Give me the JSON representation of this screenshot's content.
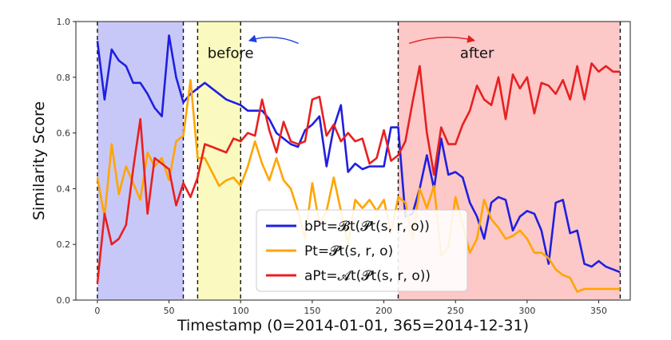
{
  "chart_data": {
    "type": "line",
    "xlabel": "Timestamp (0=2014-01-01, 365=2014-12-31)",
    "ylabel": "Similarity Score",
    "xlim": [
      -15,
      372
    ],
    "ylim": [
      0.0,
      1.0
    ],
    "xticks": [
      0,
      50,
      100,
      150,
      200,
      250,
      300,
      350
    ],
    "yticks": [
      0.0,
      0.2,
      0.4,
      0.6,
      0.8,
      1.0
    ],
    "xtick_labels": [
      "0",
      "50",
      "100",
      "150",
      "200",
      "250",
      "300",
      "350"
    ],
    "ytick_labels": [
      "0.0",
      "0.2",
      "0.4",
      "0.6",
      "0.8",
      "1.0"
    ],
    "grid": false,
    "legend_position": "bottom-center",
    "shaded_regions": [
      {
        "x0": 0,
        "x1": 60,
        "color": "#c8c8f8"
      },
      {
        "x0": 70,
        "x1": 100,
        "color": "#fafac0"
      },
      {
        "x0": 210,
        "x1": 365,
        "color": "#fcc8c8"
      }
    ],
    "vlines": [
      0,
      60,
      70,
      100,
      210,
      365
    ],
    "annotations": [
      {
        "text": "before",
        "x": 93,
        "y": 0.87,
        "arrow": "left",
        "arrow_color": "#1f3fe0"
      },
      {
        "text": "after",
        "x": 265,
        "y": 0.87,
        "arrow": "right",
        "arrow_color": "#e0201f"
      }
    ],
    "series": [
      {
        "name": "bPt=𝓑t(𝓟t(s, r, o))",
        "color": "#1f1fe0",
        "x": [
          0,
          5,
          10,
          15,
          20,
          25,
          30,
          35,
          40,
          45,
          50,
          55,
          60,
          65,
          70,
          75,
          80,
          85,
          90,
          95,
          100,
          105,
          110,
          115,
          120,
          125,
          130,
          135,
          140,
          145,
          150,
          155,
          160,
          165,
          170,
          175,
          180,
          185,
          190,
          195,
          200,
          205,
          210,
          215,
          220,
          225,
          230,
          235,
          240,
          245,
          250,
          255,
          260,
          265,
          270,
          275,
          280,
          285,
          290,
          295,
          300,
          305,
          310,
          315,
          320,
          325,
          330,
          335,
          340,
          345,
          350,
          355,
          360,
          365
        ],
        "values": [
          0.93,
          0.72,
          0.9,
          0.86,
          0.84,
          0.78,
          0.78,
          0.74,
          0.69,
          0.66,
          0.95,
          0.8,
          0.71,
          0.74,
          0.76,
          0.78,
          0.76,
          0.74,
          0.72,
          0.71,
          0.7,
          0.68,
          0.68,
          0.68,
          0.65,
          0.6,
          0.58,
          0.56,
          0.55,
          0.61,
          0.63,
          0.66,
          0.48,
          0.62,
          0.7,
          0.46,
          0.49,
          0.47,
          0.48,
          0.48,
          0.48,
          0.62,
          0.62,
          0.3,
          0.31,
          0.4,
          0.52,
          0.4,
          0.58,
          0.45,
          0.46,
          0.44,
          0.35,
          0.3,
          0.22,
          0.35,
          0.37,
          0.36,
          0.25,
          0.3,
          0.32,
          0.31,
          0.25,
          0.13,
          0.35,
          0.36,
          0.24,
          0.25,
          0.13,
          0.12,
          0.14,
          0.12,
          0.11,
          0.1
        ]
      },
      {
        "name": "Pt=𝓟t(s, r, o)",
        "color": "#ffa500",
        "x": [
          0,
          5,
          10,
          15,
          20,
          25,
          30,
          35,
          40,
          45,
          50,
          55,
          60,
          65,
          70,
          75,
          80,
          85,
          90,
          95,
          100,
          105,
          110,
          115,
          120,
          125,
          130,
          135,
          140,
          145,
          150,
          155,
          160,
          165,
          170,
          175,
          180,
          185,
          190,
          195,
          200,
          205,
          210,
          215,
          220,
          225,
          230,
          235,
          240,
          245,
          250,
          255,
          260,
          265,
          270,
          275,
          280,
          285,
          290,
          295,
          300,
          305,
          310,
          315,
          320,
          325,
          330,
          335,
          340,
          345,
          350,
          355,
          360,
          365
        ],
        "values": [
          0.44,
          0.3,
          0.56,
          0.38,
          0.48,
          0.42,
          0.36,
          0.53,
          0.48,
          0.51,
          0.43,
          0.57,
          0.59,
          0.79,
          0.51,
          0.51,
          0.46,
          0.41,
          0.43,
          0.44,
          0.41,
          0.48,
          0.57,
          0.49,
          0.43,
          0.51,
          0.43,
          0.4,
          0.32,
          0.22,
          0.42,
          0.27,
          0.32,
          0.44,
          0.32,
          0.2,
          0.36,
          0.33,
          0.36,
          0.32,
          0.36,
          0.24,
          0.37,
          0.35,
          0.22,
          0.4,
          0.33,
          0.41,
          0.16,
          0.19,
          0.37,
          0.27,
          0.17,
          0.22,
          0.36,
          0.29,
          0.26,
          0.22,
          0.23,
          0.25,
          0.22,
          0.17,
          0.17,
          0.15,
          0.11,
          0.09,
          0.08,
          0.03,
          0.04,
          0.04,
          0.04,
          0.04,
          0.04,
          0.04
        ]
      },
      {
        "name": "aPt=𝓐t(𝓟t(s, r, o))",
        "color": "#e82020",
        "x": [
          0,
          5,
          10,
          15,
          20,
          25,
          30,
          35,
          40,
          45,
          50,
          55,
          60,
          65,
          70,
          75,
          80,
          85,
          90,
          95,
          100,
          105,
          110,
          115,
          120,
          125,
          130,
          135,
          140,
          145,
          150,
          155,
          160,
          165,
          170,
          175,
          180,
          185,
          190,
          195,
          200,
          205,
          210,
          215,
          220,
          225,
          230,
          235,
          240,
          245,
          250,
          255,
          260,
          265,
          270,
          275,
          280,
          285,
          290,
          295,
          300,
          305,
          310,
          315,
          320,
          325,
          330,
          335,
          340,
          345,
          350,
          355,
          360,
          365
        ],
        "values": [
          0.06,
          0.31,
          0.2,
          0.22,
          0.27,
          0.47,
          0.65,
          0.31,
          0.51,
          0.49,
          0.47,
          0.34,
          0.42,
          0.37,
          0.44,
          0.56,
          0.55,
          0.54,
          0.53,
          0.58,
          0.57,
          0.6,
          0.59,
          0.72,
          0.61,
          0.53,
          0.64,
          0.57,
          0.56,
          0.57,
          0.72,
          0.73,
          0.59,
          0.63,
          0.57,
          0.6,
          0.57,
          0.58,
          0.49,
          0.51,
          0.61,
          0.5,
          0.52,
          0.57,
          0.71,
          0.84,
          0.6,
          0.45,
          0.62,
          0.56,
          0.56,
          0.63,
          0.68,
          0.77,
          0.72,
          0.7,
          0.8,
          0.65,
          0.81,
          0.76,
          0.8,
          0.67,
          0.78,
          0.77,
          0.74,
          0.79,
          0.72,
          0.84,
          0.72,
          0.85,
          0.82,
          0.84,
          0.82,
          0.82
        ]
      }
    ]
  }
}
